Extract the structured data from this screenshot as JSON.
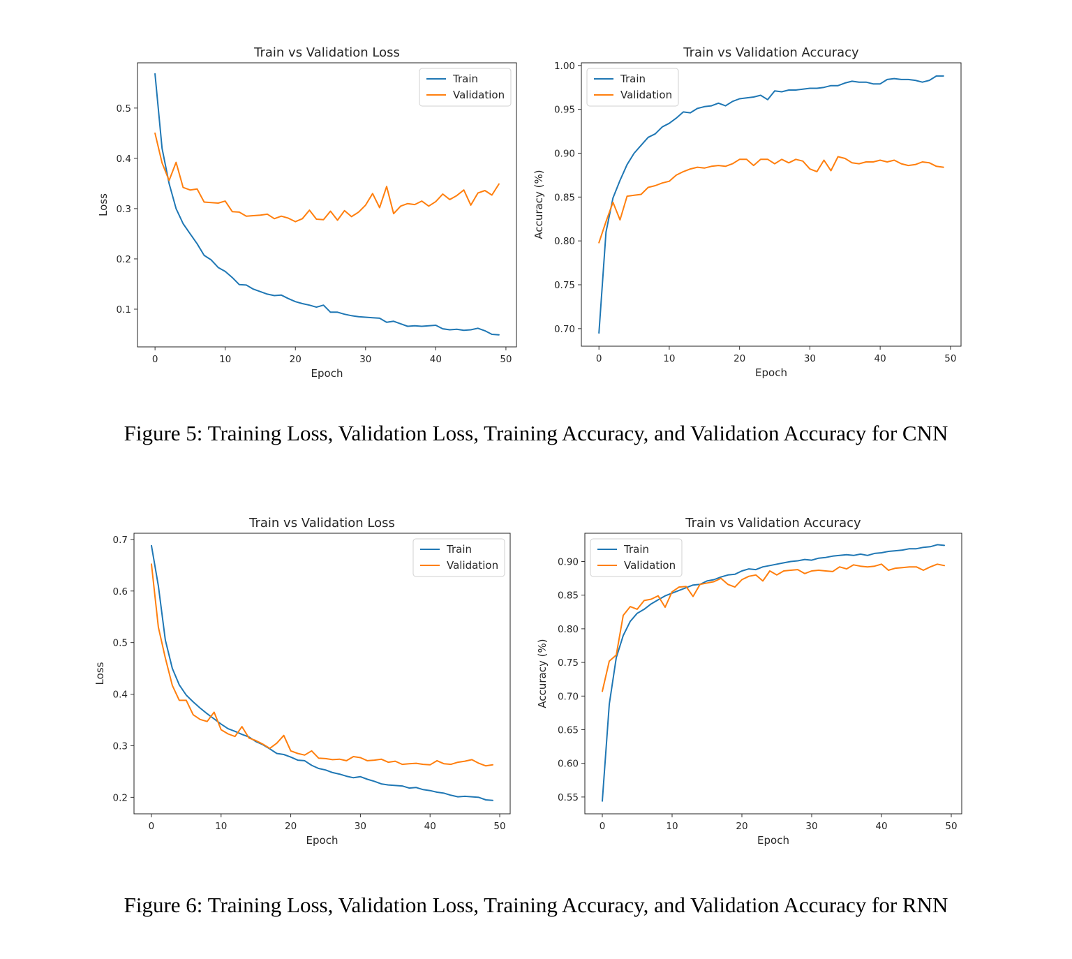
{
  "captions": {
    "figure5": "Figure 5: Training Loss, Validation Loss, Training Accuracy, and Validation Accuracy for CNN",
    "figure6": "Figure 6: Training Loss, Validation Loss, Training Accuracy, and Validation Accuracy for RNN"
  },
  "colors": {
    "train": "#1f77b4",
    "validation": "#ff7f0e"
  },
  "chart_data": [
    {
      "id": "cnn_loss",
      "type": "line",
      "title": "Train vs Validation Loss",
      "xlabel": "Epoch",
      "ylabel": "Loss",
      "xlim": [
        -2.5,
        51.5
      ],
      "ylim": [
        0.025,
        0.59
      ],
      "xticks": [
        0,
        10,
        20,
        30,
        40,
        50
      ],
      "yticks": [
        0.1,
        0.2,
        0.3,
        0.4,
        0.5
      ],
      "ytick_labels": [
        "0.1",
        "0.2",
        "0.3",
        "0.4",
        "0.5"
      ],
      "legend": "top-right",
      "series": [
        {
          "name": "Train",
          "values": [
            0.568,
            0.42,
            0.35,
            0.3,
            0.27,
            0.25,
            0.23,
            0.207,
            0.198,
            0.183,
            0.175,
            0.163,
            0.149,
            0.148,
            0.14,
            0.135,
            0.13,
            0.127,
            0.128,
            0.121,
            0.115,
            0.111,
            0.108,
            0.104,
            0.108,
            0.094,
            0.094,
            0.09,
            0.087,
            0.085,
            0.084,
            0.083,
            0.082,
            0.074,
            0.076,
            0.071,
            0.066,
            0.067,
            0.066,
            0.067,
            0.068,
            0.061,
            0.059,
            0.06,
            0.058,
            0.059,
            0.062,
            0.057,
            0.05,
            0.049
          ]
        },
        {
          "name": "Validation",
          "values": [
            0.45,
            0.391,
            0.356,
            0.392,
            0.342,
            0.337,
            0.339,
            0.313,
            0.312,
            0.311,
            0.315,
            0.294,
            0.293,
            0.285,
            0.286,
            0.287,
            0.289,
            0.28,
            0.285,
            0.281,
            0.274,
            0.28,
            0.297,
            0.279,
            0.278,
            0.295,
            0.277,
            0.296,
            0.284,
            0.293,
            0.307,
            0.33,
            0.302,
            0.344,
            0.29,
            0.305,
            0.31,
            0.308,
            0.315,
            0.305,
            0.314,
            0.329,
            0.318,
            0.326,
            0.337,
            0.307,
            0.331,
            0.336,
            0.327,
            0.349
          ]
        }
      ]
    },
    {
      "id": "cnn_acc",
      "type": "line",
      "title": "Train vs Validation Accuracy",
      "xlabel": "Epoch",
      "ylabel": "Accuracy (%)",
      "xlim": [
        -2.5,
        51.5
      ],
      "ylim": [
        0.68,
        1.003
      ],
      "xticks": [
        0,
        10,
        20,
        30,
        40,
        50
      ],
      "yticks": [
        0.7,
        0.75,
        0.8,
        0.85,
        0.9,
        0.95,
        1.0
      ],
      "ytick_labels": [
        "0.70",
        "0.75",
        "0.80",
        "0.85",
        "0.90",
        "0.95",
        "1.00"
      ],
      "legend": "top-left",
      "series": [
        {
          "name": "Train",
          "values": [
            0.695,
            0.81,
            0.849,
            0.869,
            0.887,
            0.9,
            0.909,
            0.918,
            0.922,
            0.93,
            0.934,
            0.94,
            0.947,
            0.946,
            0.951,
            0.953,
            0.954,
            0.957,
            0.954,
            0.959,
            0.962,
            0.963,
            0.964,
            0.966,
            0.961,
            0.971,
            0.97,
            0.972,
            0.972,
            0.973,
            0.974,
            0.974,
            0.975,
            0.977,
            0.977,
            0.98,
            0.982,
            0.981,
            0.981,
            0.979,
            0.979,
            0.984,
            0.985,
            0.984,
            0.984,
            0.983,
            0.981,
            0.983,
            0.988,
            0.988
          ]
        },
        {
          "name": "Validation",
          "values": [
            0.798,
            0.822,
            0.844,
            0.824,
            0.851,
            0.852,
            0.853,
            0.861,
            0.863,
            0.866,
            0.868,
            0.875,
            0.879,
            0.882,
            0.884,
            0.883,
            0.885,
            0.886,
            0.885,
            0.888,
            0.893,
            0.893,
            0.886,
            0.893,
            0.893,
            0.888,
            0.893,
            0.889,
            0.893,
            0.891,
            0.882,
            0.879,
            0.892,
            0.88,
            0.896,
            0.894,
            0.889,
            0.888,
            0.89,
            0.89,
            0.892,
            0.89,
            0.892,
            0.888,
            0.886,
            0.887,
            0.89,
            0.889,
            0.885,
            0.884
          ]
        }
      ]
    },
    {
      "id": "rnn_loss",
      "type": "line",
      "title": "Train vs Validation Loss",
      "xlabel": "Epoch",
      "ylabel": "Loss",
      "xlim": [
        -2.5,
        51.5
      ],
      "ylim": [
        0.168,
        0.712
      ],
      "xticks": [
        0,
        10,
        20,
        30,
        40,
        50
      ],
      "yticks": [
        0.2,
        0.3,
        0.4,
        0.5,
        0.6,
        0.7
      ],
      "ytick_labels": [
        "0.2",
        "0.3",
        "0.4",
        "0.5",
        "0.6",
        "0.7"
      ],
      "legend": "top-right",
      "series": [
        {
          "name": "Train",
          "values": [
            0.688,
            0.61,
            0.505,
            0.45,
            0.418,
            0.398,
            0.385,
            0.373,
            0.362,
            0.352,
            0.342,
            0.333,
            0.328,
            0.322,
            0.317,
            0.308,
            0.302,
            0.294,
            0.285,
            0.283,
            0.278,
            0.272,
            0.271,
            0.262,
            0.256,
            0.253,
            0.248,
            0.245,
            0.241,
            0.238,
            0.24,
            0.235,
            0.231,
            0.226,
            0.224,
            0.223,
            0.222,
            0.218,
            0.219,
            0.215,
            0.213,
            0.21,
            0.208,
            0.204,
            0.201,
            0.202,
            0.201,
            0.2,
            0.195,
            0.194
          ]
        },
        {
          "name": "Validation",
          "values": [
            0.652,
            0.53,
            0.47,
            0.417,
            0.388,
            0.388,
            0.36,
            0.351,
            0.347,
            0.365,
            0.331,
            0.323,
            0.318,
            0.337,
            0.315,
            0.31,
            0.303,
            0.295,
            0.305,
            0.32,
            0.29,
            0.285,
            0.282,
            0.29,
            0.276,
            0.275,
            0.273,
            0.274,
            0.271,
            0.279,
            0.277,
            0.271,
            0.272,
            0.274,
            0.268,
            0.27,
            0.264,
            0.265,
            0.266,
            0.264,
            0.263,
            0.271,
            0.265,
            0.264,
            0.268,
            0.27,
            0.273,
            0.266,
            0.261,
            0.263
          ]
        }
      ]
    },
    {
      "id": "rnn_acc",
      "type": "line",
      "title": "Train vs Validation Accuracy",
      "xlabel": "Epoch",
      "ylabel": "Accuracy (%)",
      "xlim": [
        -2.5,
        51.5
      ],
      "ylim": [
        0.525,
        0.942
      ],
      "xticks": [
        0,
        10,
        20,
        30,
        40,
        50
      ],
      "yticks": [
        0.55,
        0.6,
        0.65,
        0.7,
        0.75,
        0.8,
        0.85,
        0.9
      ],
      "ytick_labels": [
        "0.55",
        "0.60",
        "0.65",
        "0.70",
        "0.75",
        "0.80",
        "0.85",
        "0.90"
      ],
      "legend": "top-left",
      "series": [
        {
          "name": "Train",
          "values": [
            0.544,
            0.688,
            0.757,
            0.79,
            0.811,
            0.823,
            0.829,
            0.837,
            0.843,
            0.849,
            0.853,
            0.857,
            0.861,
            0.865,
            0.866,
            0.871,
            0.873,
            0.877,
            0.88,
            0.881,
            0.886,
            0.889,
            0.888,
            0.892,
            0.894,
            0.896,
            0.898,
            0.9,
            0.901,
            0.903,
            0.902,
            0.905,
            0.906,
            0.908,
            0.909,
            0.91,
            0.909,
            0.911,
            0.909,
            0.912,
            0.913,
            0.915,
            0.916,
            0.917,
            0.919,
            0.919,
            0.921,
            0.922,
            0.925,
            0.924
          ]
        },
        {
          "name": "Validation",
          "values": [
            0.707,
            0.752,
            0.761,
            0.82,
            0.833,
            0.829,
            0.842,
            0.844,
            0.849,
            0.832,
            0.855,
            0.862,
            0.863,
            0.848,
            0.866,
            0.868,
            0.87,
            0.875,
            0.866,
            0.862,
            0.873,
            0.878,
            0.88,
            0.871,
            0.886,
            0.88,
            0.886,
            0.887,
            0.888,
            0.882,
            0.886,
            0.887,
            0.886,
            0.885,
            0.892,
            0.889,
            0.895,
            0.893,
            0.892,
            0.893,
            0.896,
            0.887,
            0.89,
            0.891,
            0.892,
            0.892,
            0.887,
            0.892,
            0.896,
            0.894
          ]
        }
      ]
    }
  ]
}
